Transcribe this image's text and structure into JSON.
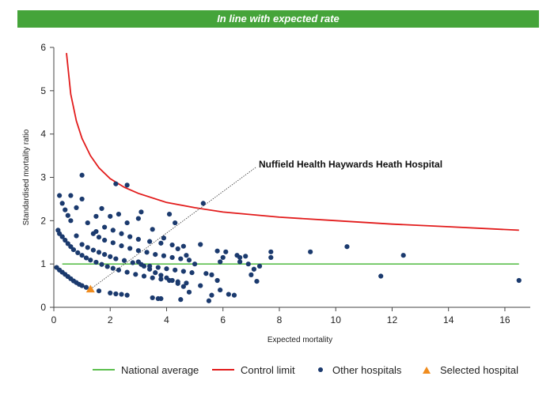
{
  "banner": {
    "text": "In line with expected rate"
  },
  "colors": {
    "banner": "#45a43a",
    "national_average": "#5cbf4d",
    "control_limit": "#e21b1b",
    "other_hospitals": "#1b3a6e",
    "selected_hospital": "#f08c1e"
  },
  "chart_data": {
    "type": "scatter",
    "title": "",
    "xlabel": "Expected mortality",
    "ylabel": "Standardised mortality ratio",
    "xlim": [
      0,
      16.9
    ],
    "ylim": [
      0,
      6
    ],
    "xticks": [
      0,
      2,
      4,
      6,
      8,
      10,
      12,
      14,
      16
    ],
    "yticks": [
      0,
      1,
      2,
      3,
      4,
      5,
      6
    ],
    "grid": false,
    "legend_position": "bottom",
    "national_average": {
      "name": "National average",
      "y": 1
    },
    "control_limit": {
      "name": "Control limit",
      "x": [
        0.45,
        0.6,
        0.8,
        1.0,
        1.3,
        1.6,
        2.0,
        2.5,
        3.0,
        4.0,
        5.0,
        6.0,
        8.0,
        10.0,
        12.0,
        14.0,
        16.5
      ],
      "y": [
        5.87,
        4.92,
        4.3,
        3.9,
        3.5,
        3.22,
        2.97,
        2.77,
        2.63,
        2.42,
        2.3,
        2.2,
        2.08,
        2.0,
        1.92,
        1.86,
        1.78
      ]
    },
    "other_hospitals": {
      "name": "Other hospitals",
      "points": [
        [
          0.2,
          2.58
        ],
        [
          0.6,
          2.58
        ],
        [
          0.3,
          2.4
        ],
        [
          0.4,
          2.25
        ],
        [
          0.5,
          2.12
        ],
        [
          0.8,
          2.3
        ],
        [
          1.0,
          2.5
        ],
        [
          1.5,
          2.1
        ],
        [
          1.7,
          2.28
        ],
        [
          2.0,
          2.1
        ],
        [
          2.2,
          2.85
        ],
        [
          2.6,
          2.82
        ],
        [
          1.0,
          3.05
        ],
        [
          0.6,
          2.0
        ],
        [
          0.8,
          1.65
        ],
        [
          1.2,
          1.95
        ],
        [
          1.5,
          1.75
        ],
        [
          1.8,
          1.85
        ],
        [
          2.3,
          2.15
        ],
        [
          2.6,
          1.95
        ],
        [
          3.0,
          2.05
        ],
        [
          3.1,
          2.2
        ],
        [
          4.1,
          2.15
        ],
        [
          4.3,
          1.95
        ],
        [
          0.15,
          1.78
        ],
        [
          0.2,
          1.7
        ],
        [
          0.3,
          1.63
        ],
        [
          0.4,
          1.55
        ],
        [
          0.5,
          1.47
        ],
        [
          0.6,
          1.4
        ],
        [
          0.7,
          1.33
        ],
        [
          0.85,
          1.26
        ],
        [
          1.0,
          1.2
        ],
        [
          1.15,
          1.14
        ],
        [
          1.3,
          1.09
        ],
        [
          1.5,
          1.04
        ],
        [
          1.7,
          0.99
        ],
        [
          1.9,
          0.94
        ],
        [
          2.1,
          0.9
        ],
        [
          2.3,
          0.86
        ],
        [
          2.6,
          0.81
        ],
        [
          2.9,
          0.76
        ],
        [
          3.2,
          0.72
        ],
        [
          3.5,
          0.68
        ],
        [
          3.8,
          0.65
        ],
        [
          4.1,
          0.62
        ],
        [
          4.4,
          0.59
        ],
        [
          4.7,
          0.56
        ],
        [
          1.0,
          1.45
        ],
        [
          1.2,
          1.38
        ],
        [
          1.4,
          1.32
        ],
        [
          1.6,
          1.27
        ],
        [
          1.8,
          1.22
        ],
        [
          2.0,
          1.17
        ],
        [
          2.2,
          1.12
        ],
        [
          2.5,
          1.08
        ],
        [
          2.8,
          1.03
        ],
        [
          3.1,
          0.99
        ],
        [
          3.4,
          0.95
        ],
        [
          3.7,
          0.92
        ],
        [
          4.0,
          0.89
        ],
        [
          4.3,
          0.86
        ],
        [
          4.6,
          0.83
        ],
        [
          4.9,
          0.8
        ],
        [
          1.4,
          1.7
        ],
        [
          1.6,
          1.62
        ],
        [
          1.8,
          1.55
        ],
        [
          2.1,
          1.49
        ],
        [
          2.4,
          1.42
        ],
        [
          2.7,
          1.36
        ],
        [
          3.0,
          1.31
        ],
        [
          3.3,
          1.27
        ],
        [
          3.6,
          1.22
        ],
        [
          3.9,
          1.19
        ],
        [
          4.2,
          1.15
        ],
        [
          4.5,
          1.12
        ],
        [
          4.8,
          1.09
        ],
        [
          2.1,
          1.78
        ],
        [
          2.4,
          1.7
        ],
        [
          2.7,
          1.63
        ],
        [
          3.0,
          1.57
        ],
        [
          3.4,
          1.52
        ],
        [
          3.8,
          1.48
        ],
        [
          4.2,
          1.44
        ],
        [
          4.6,
          1.41
        ],
        [
          0.1,
          0.92
        ],
        [
          0.2,
          0.86
        ],
        [
          0.3,
          0.81
        ],
        [
          0.4,
          0.76
        ],
        [
          0.5,
          0.71
        ],
        [
          0.6,
          0.66
        ],
        [
          0.7,
          0.61
        ],
        [
          0.8,
          0.57
        ],
        [
          0.9,
          0.53
        ],
        [
          1.0,
          0.5
        ],
        [
          1.15,
          0.46
        ],
        [
          1.6,
          0.38
        ],
        [
          2.0,
          0.33
        ],
        [
          2.2,
          0.31
        ],
        [
          2.4,
          0.3
        ],
        [
          2.6,
          0.28
        ],
        [
          3.5,
          0.22
        ],
        [
          3.7,
          0.2
        ],
        [
          3.8,
          0.2
        ],
        [
          4.5,
          0.18
        ],
        [
          4.8,
          0.35
        ],
        [
          5.2,
          0.5
        ],
        [
          5.5,
          0.15
        ],
        [
          5.6,
          0.28
        ],
        [
          3.0,
          1.05
        ],
        [
          3.2,
          0.95
        ],
        [
          3.4,
          0.88
        ],
        [
          3.6,
          0.8
        ],
        [
          3.8,
          0.74
        ],
        [
          4.0,
          0.68
        ],
        [
          4.2,
          0.62
        ],
        [
          4.4,
          0.55
        ],
        [
          4.6,
          0.48
        ],
        [
          3.5,
          1.8
        ],
        [
          3.9,
          1.6
        ],
        [
          4.4,
          1.35
        ],
        [
          4.7,
          1.2
        ],
        [
          5.2,
          1.45
        ],
        [
          5.0,
          1.0
        ],
        [
          5.4,
          0.78
        ],
        [
          5.6,
          0.75
        ],
        [
          5.8,
          0.62
        ],
        [
          5.9,
          0.4
        ],
        [
          5.8,
          1.3
        ],
        [
          6.0,
          1.15
        ],
        [
          5.9,
          1.05
        ],
        [
          6.1,
          1.28
        ],
        [
          6.2,
          0.3
        ],
        [
          6.4,
          0.28
        ],
        [
          6.5,
          1.2
        ],
        [
          6.6,
          1.15
        ],
        [
          6.6,
          1.05
        ],
        [
          6.8,
          1.18
        ],
        [
          6.9,
          1.0
        ],
        [
          7.0,
          0.75
        ],
        [
          7.1,
          0.88
        ],
        [
          7.2,
          0.6
        ],
        [
          7.3,
          0.95
        ],
        [
          7.7,
          1.15
        ],
        [
          7.7,
          1.28
        ],
        [
          9.1,
          1.28
        ],
        [
          10.4,
          1.4
        ],
        [
          11.6,
          0.72
        ],
        [
          12.4,
          1.2
        ],
        [
          16.5,
          0.62
        ]
      ]
    },
    "selected_hospital": {
      "name": "Selected hospital",
      "label": "Nuffield Health Haywards Heath Hospital",
      "point": [
        1.3,
        0.42
      ],
      "marker_ref": [
        5.3,
        2.4
      ]
    }
  }
}
